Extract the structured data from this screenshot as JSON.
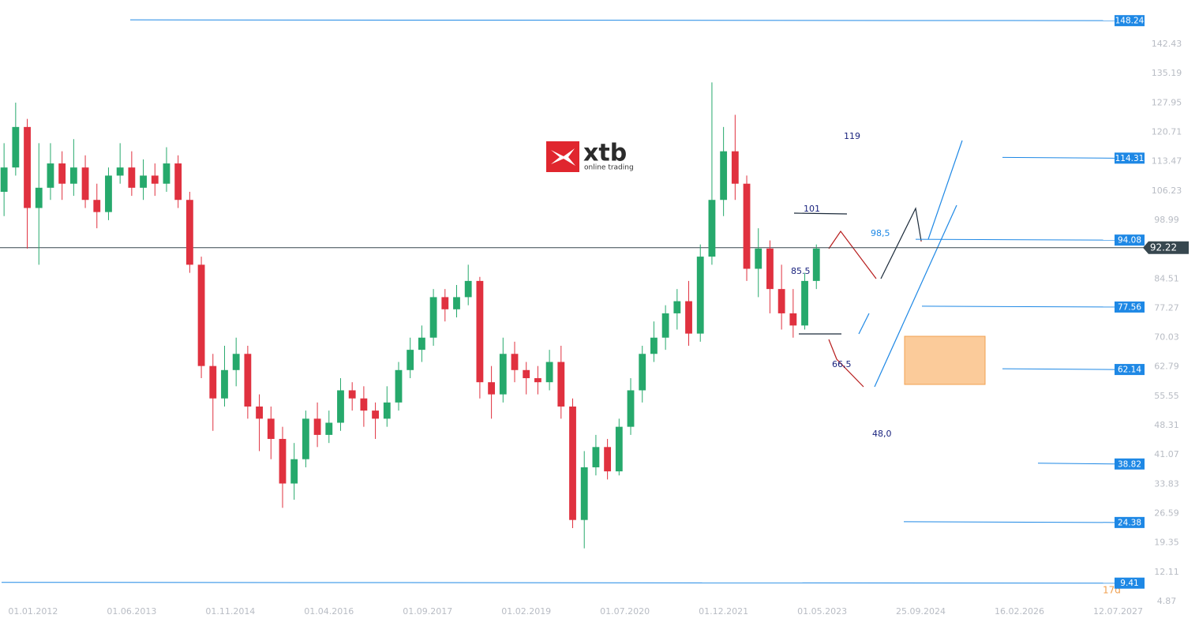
{
  "chart_data": {
    "type": "candlestick",
    "up_color": "#26a96c",
    "down_color": "#e0313f",
    "x": [
      -5,
      -3,
      -1,
      1,
      3,
      5,
      7,
      9,
      11,
      13,
      15,
      17,
      19,
      21,
      23,
      25,
      27,
      29,
      31,
      33,
      35,
      37,
      39,
      41,
      43,
      45,
      47,
      49,
      51,
      53,
      55,
      57,
      59,
      61,
      63,
      65,
      67,
      69,
      71,
      73,
      75,
      77,
      79,
      81,
      83,
      85,
      87,
      89,
      91,
      93,
      95,
      97,
      99,
      101,
      103,
      105,
      107,
      109,
      111,
      113,
      115,
      117,
      119,
      121,
      123,
      125,
      127,
      129,
      131,
      133,
      135
    ],
    "open": [
      106,
      112,
      122,
      102,
      107,
      113,
      108,
      112,
      104,
      101,
      110,
      112,
      107,
      110,
      108,
      113,
      104,
      88,
      63,
      55,
      62,
      66,
      53,
      50,
      45,
      34,
      40,
      50,
      46,
      49,
      57,
      55,
      52,
      50,
      54,
      62,
      67,
      70,
      80,
      77,
      80,
      84,
      59,
      56,
      66,
      62,
      60,
      59,
      64,
      53,
      25,
      38,
      43,
      37,
      48,
      57,
      66,
      70,
      76,
      79,
      71,
      90,
      104,
      116,
      108,
      87,
      92,
      82,
      76,
      73,
      84
    ],
    "high": [
      118,
      128,
      124,
      118,
      118,
      116,
      119,
      115,
      108,
      112,
      118,
      116,
      114,
      113,
      117,
      115,
      106,
      90,
      66,
      68,
      70,
      68,
      56,
      53,
      48,
      44,
      52,
      54,
      52,
      60,
      59,
      58,
      54,
      58,
      64,
      70,
      73,
      82,
      82,
      83,
      88,
      85,
      63,
      70,
      69,
      64,
      63,
      67,
      68,
      55,
      42,
      46,
      45,
      50,
      60,
      68,
      74,
      78,
      82,
      84,
      93,
      133,
      122,
      125,
      110,
      97,
      94,
      88,
      82,
      86,
      93
    ],
    "low": [
      100,
      110,
      92,
      88,
      104,
      104,
      105,
      102,
      97,
      99,
      108,
      105,
      104,
      105,
      106,
      102,
      86,
      60,
      47,
      53,
      58,
      50,
      42,
      40,
      28,
      30,
      38,
      43,
      44,
      47,
      52,
      48,
      45,
      48,
      52,
      60,
      64,
      68,
      74,
      75,
      78,
      55,
      50,
      54,
      59,
      56,
      56,
      57,
      50,
      23,
      18,
      36,
      35,
      36,
      46,
      54,
      64,
      67,
      72,
      68,
      69,
      88,
      100,
      104,
      84,
      80,
      76,
      72,
      70,
      72,
      82
    ],
    "close": [
      112,
      122,
      102,
      107,
      113,
      108,
      112,
      104,
      101,
      110,
      112,
      107,
      110,
      108,
      113,
      104,
      88,
      63,
      55,
      62,
      66,
      53,
      50,
      45,
      34,
      40,
      50,
      46,
      49,
      57,
      55,
      52,
      50,
      54,
      62,
      67,
      70,
      80,
      77,
      80,
      84,
      59,
      56,
      66,
      62,
      60,
      59,
      64,
      53,
      25,
      38,
      43,
      37,
      48,
      57,
      66,
      70,
      76,
      79,
      71,
      90,
      104,
      116,
      108,
      87,
      92,
      82,
      76,
      73,
      84,
      92
    ],
    "xlim": [
      -5.7,
      190.2
    ],
    "xticks": [
      {
        "value": 0,
        "label": "01.01.2012"
      },
      {
        "value": 17,
        "label": "01.06.2013"
      },
      {
        "value": 34,
        "label": "01.11.2014"
      },
      {
        "value": 51,
        "label": "01.04.2016"
      },
      {
        "value": 68,
        "label": "01.09.2017"
      },
      {
        "value": 85,
        "label": "01.02.2019"
      },
      {
        "value": 102,
        "label": "01.07.2020"
      },
      {
        "value": 119,
        "label": "01.12.2021"
      },
      {
        "value": 136,
        "label": "01.05.2023"
      },
      {
        "value": 153,
        "label": "25.09.2024"
      },
      {
        "value": 170,
        "label": "16.02.2026"
      },
      {
        "value": 187,
        "label": "12.07.2027"
      }
    ],
    "ylim": [
      -1.17,
      153.34
    ],
    "yticks": [
      4.87,
      12.11,
      19.35,
      26.59,
      33.83,
      41.07,
      48.31,
      55.55,
      62.79,
      70.03,
      77.27,
      84.51,
      98.99,
      106.23,
      113.47,
      120.71,
      127.95,
      135.19,
      142.43
    ],
    "levels": [
      148.24,
      114.31,
      94.08,
      77.56,
      62.14,
      38.82,
      24.38,
      9.41
    ],
    "level_color": "#1e88e5",
    "current_price": 92.22,
    "annotations": [
      "119",
      "101",
      "98,5",
      "85.5",
      "66,5",
      "48,0"
    ],
    "countdown": "17d"
  },
  "logo": {
    "name": "xtb",
    "tagline": "online trading"
  }
}
